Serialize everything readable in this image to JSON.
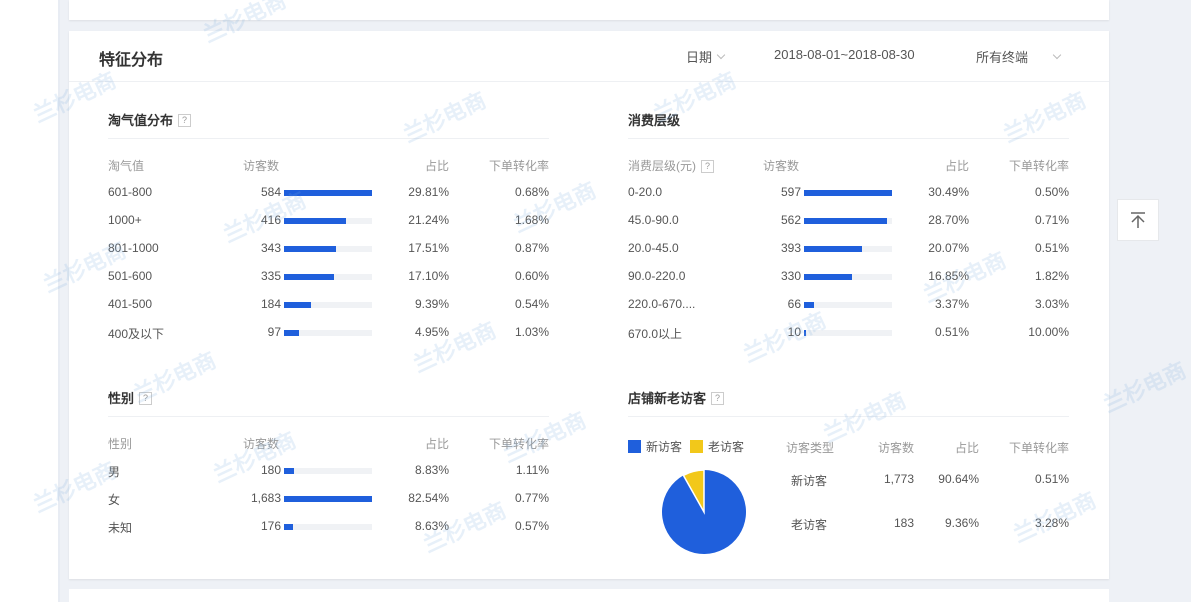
{
  "card": {
    "title": "特征分布",
    "date_label": "日期",
    "date_range": "2018-08-01~2018-08-30",
    "terminal": "所有终端"
  },
  "taoqi": {
    "title": "淘气值分布",
    "headers": [
      "淘气值",
      "访客数",
      "占比",
      "下单转化率"
    ],
    "rows": [
      {
        "name": "601-800",
        "count": "584",
        "bar": 100,
        "pct": "29.81%",
        "rate": "0.68%"
      },
      {
        "name": "1000+",
        "count": "416",
        "bar": 71,
        "pct": "21.24%",
        "rate": "1.68%"
      },
      {
        "name": "801-1000",
        "count": "343",
        "bar": 59,
        "pct": "17.51%",
        "rate": "0.87%"
      },
      {
        "name": "501-600",
        "count": "335",
        "bar": 57,
        "pct": "17.10%",
        "rate": "0.60%"
      },
      {
        "name": "401-500",
        "count": "184",
        "bar": 31,
        "pct": "9.39%",
        "rate": "0.54%"
      },
      {
        "name": "400及以下",
        "count": "97",
        "bar": 17,
        "pct": "4.95%",
        "rate": "1.03%"
      }
    ]
  },
  "consume": {
    "title": "消费层级",
    "headers": [
      "消费层级(元)",
      "访客数",
      "占比",
      "下单转化率"
    ],
    "rows": [
      {
        "name": "0-20.0",
        "count": "597",
        "bar": 100,
        "pct": "30.49%",
        "rate": "0.50%"
      },
      {
        "name": "45.0-90.0",
        "count": "562",
        "bar": 94,
        "pct": "28.70%",
        "rate": "0.71%"
      },
      {
        "name": "20.0-45.0",
        "count": "393",
        "bar": 66,
        "pct": "20.07%",
        "rate": "0.51%"
      },
      {
        "name": "90.0-220.0",
        "count": "330",
        "bar": 55,
        "pct": "16.85%",
        "rate": "1.82%"
      },
      {
        "name": "220.0-670....",
        "count": "66",
        "bar": 11,
        "pct": "3.37%",
        "rate": "3.03%"
      },
      {
        "name": "670.0以上",
        "count": "10",
        "bar": 2,
        "pct": "0.51%",
        "rate": "10.00%"
      }
    ]
  },
  "gender": {
    "title": "性别",
    "headers": [
      "性别",
      "访客数",
      "占比",
      "下单转化率"
    ],
    "rows": [
      {
        "name": "男",
        "count": "180",
        "bar": 11,
        "pct": "8.83%",
        "rate": "1.11%"
      },
      {
        "name": "女",
        "count": "1,683",
        "bar": 100,
        "pct": "82.54%",
        "rate": "0.77%"
      },
      {
        "name": "未知",
        "count": "176",
        "bar": 10,
        "pct": "8.63%",
        "rate": "0.57%"
      }
    ]
  },
  "visitors": {
    "title": "店铺新老访客",
    "legend": [
      {
        "label": "新访客",
        "color": "#1f5fdc"
      },
      {
        "label": "老访客",
        "color": "#f2c81a"
      }
    ],
    "headers": [
      "访客类型",
      "访客数",
      "占比",
      "下单转化率"
    ],
    "rows": [
      {
        "name": "新访客",
        "count": "1,773",
        "pct": "90.64%",
        "rate": "0.51%"
      },
      {
        "name": "老访客",
        "count": "183",
        "pct": "9.36%",
        "rate": "3.28%"
      }
    ]
  },
  "colors": {
    "accent": "#1f5fdc",
    "old_visitor": "#f2c81a"
  }
}
